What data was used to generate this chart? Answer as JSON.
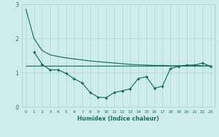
{
  "xlabel": "Humidex (Indice chaleur)",
  "background_color": "#ceecea",
  "grid_color": "#a8d4d0",
  "line_color": "#1a6e66",
  "xlim": [
    -0.5,
    23.5
  ],
  "ylim": [
    0,
    3.0
  ],
  "yticks": [
    0,
    1,
    2,
    3
  ],
  "xticks": [
    0,
    1,
    2,
    3,
    4,
    5,
    6,
    7,
    8,
    9,
    10,
    11,
    12,
    13,
    14,
    15,
    16,
    17,
    18,
    19,
    20,
    21,
    22,
    23
  ],
  "series1_x": [
    0,
    1,
    2,
    3,
    4,
    5,
    6,
    7,
    8,
    9,
    10,
    11,
    12,
    13,
    14,
    15,
    16,
    17,
    18,
    19,
    20,
    21,
    22,
    23
  ],
  "series1_y": [
    2.85,
    2.0,
    1.65,
    1.52,
    1.47,
    1.43,
    1.4,
    1.37,
    1.34,
    1.32,
    1.3,
    1.28,
    1.26,
    1.24,
    1.23,
    1.22,
    1.21,
    1.21,
    1.2,
    1.2,
    1.2,
    1.21,
    1.2,
    1.2
  ],
  "series2_x": [
    0,
    1,
    2,
    3,
    4,
    5,
    6,
    7,
    8,
    9,
    10,
    11,
    12,
    13,
    14,
    15,
    16,
    17,
    18,
    19,
    20,
    21,
    22,
    23
  ],
  "series2_y": [
    1.2,
    1.2,
    1.2,
    1.2,
    1.2,
    1.2,
    1.2,
    1.2,
    1.2,
    1.2,
    1.2,
    1.2,
    1.2,
    1.2,
    1.2,
    1.2,
    1.2,
    1.2,
    1.2,
    1.2,
    1.2,
    1.2,
    1.2,
    1.2
  ],
  "series3_x": [
    1,
    2,
    3,
    4,
    5,
    6,
    7,
    8,
    9,
    10,
    11,
    12,
    13,
    14,
    15,
    16,
    17,
    18,
    19,
    20,
    21,
    22,
    23
  ],
  "series3_y": [
    1.6,
    1.25,
    1.08,
    1.08,
    0.98,
    0.82,
    0.7,
    0.42,
    0.28,
    0.27,
    0.42,
    0.47,
    0.53,
    0.83,
    0.88,
    0.55,
    0.6,
    1.12,
    1.18,
    1.22,
    1.22,
    1.28,
    1.18
  ]
}
